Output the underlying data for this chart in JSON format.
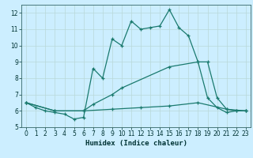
{
  "title": "",
  "xlabel": "Humidex (Indice chaleur)",
  "bg_color": "#cceeff",
  "grid_color": "#b8d8d8",
  "line_color": "#1a7a6e",
  "xlim": [
    -0.5,
    23.5
  ],
  "ylim": [
    5.0,
    12.5
  ],
  "yticks": [
    5,
    6,
    7,
    8,
    9,
    10,
    11,
    12
  ],
  "xticks": [
    0,
    1,
    2,
    3,
    4,
    5,
    6,
    7,
    8,
    9,
    10,
    11,
    12,
    13,
    14,
    15,
    16,
    17,
    18,
    19,
    20,
    21,
    22,
    23
  ],
  "line1_x": [
    0,
    1,
    2,
    3,
    4,
    5,
    6,
    7,
    8,
    9,
    10,
    11,
    12,
    13,
    14,
    15,
    16,
    17,
    18,
    19,
    20,
    21,
    22,
    23
  ],
  "line1_y": [
    6.5,
    6.2,
    6.0,
    5.9,
    5.8,
    5.5,
    5.6,
    8.6,
    8.0,
    10.4,
    10.0,
    11.5,
    11.0,
    11.1,
    11.2,
    12.2,
    11.1,
    10.6,
    9.0,
    6.8,
    6.2,
    5.9,
    6.0,
    6.0
  ],
  "line2_x": [
    0,
    3,
    6,
    7,
    9,
    10,
    15,
    18,
    19,
    20,
    21,
    22,
    23
  ],
  "line2_y": [
    6.5,
    6.0,
    6.0,
    6.4,
    7.0,
    7.4,
    8.7,
    9.0,
    9.0,
    6.8,
    6.1,
    6.0,
    6.0
  ],
  "line3_x": [
    0,
    3,
    6,
    9,
    12,
    15,
    18,
    21,
    23
  ],
  "line3_y": [
    6.5,
    6.0,
    6.0,
    6.1,
    6.2,
    6.3,
    6.5,
    6.1,
    6.0
  ]
}
